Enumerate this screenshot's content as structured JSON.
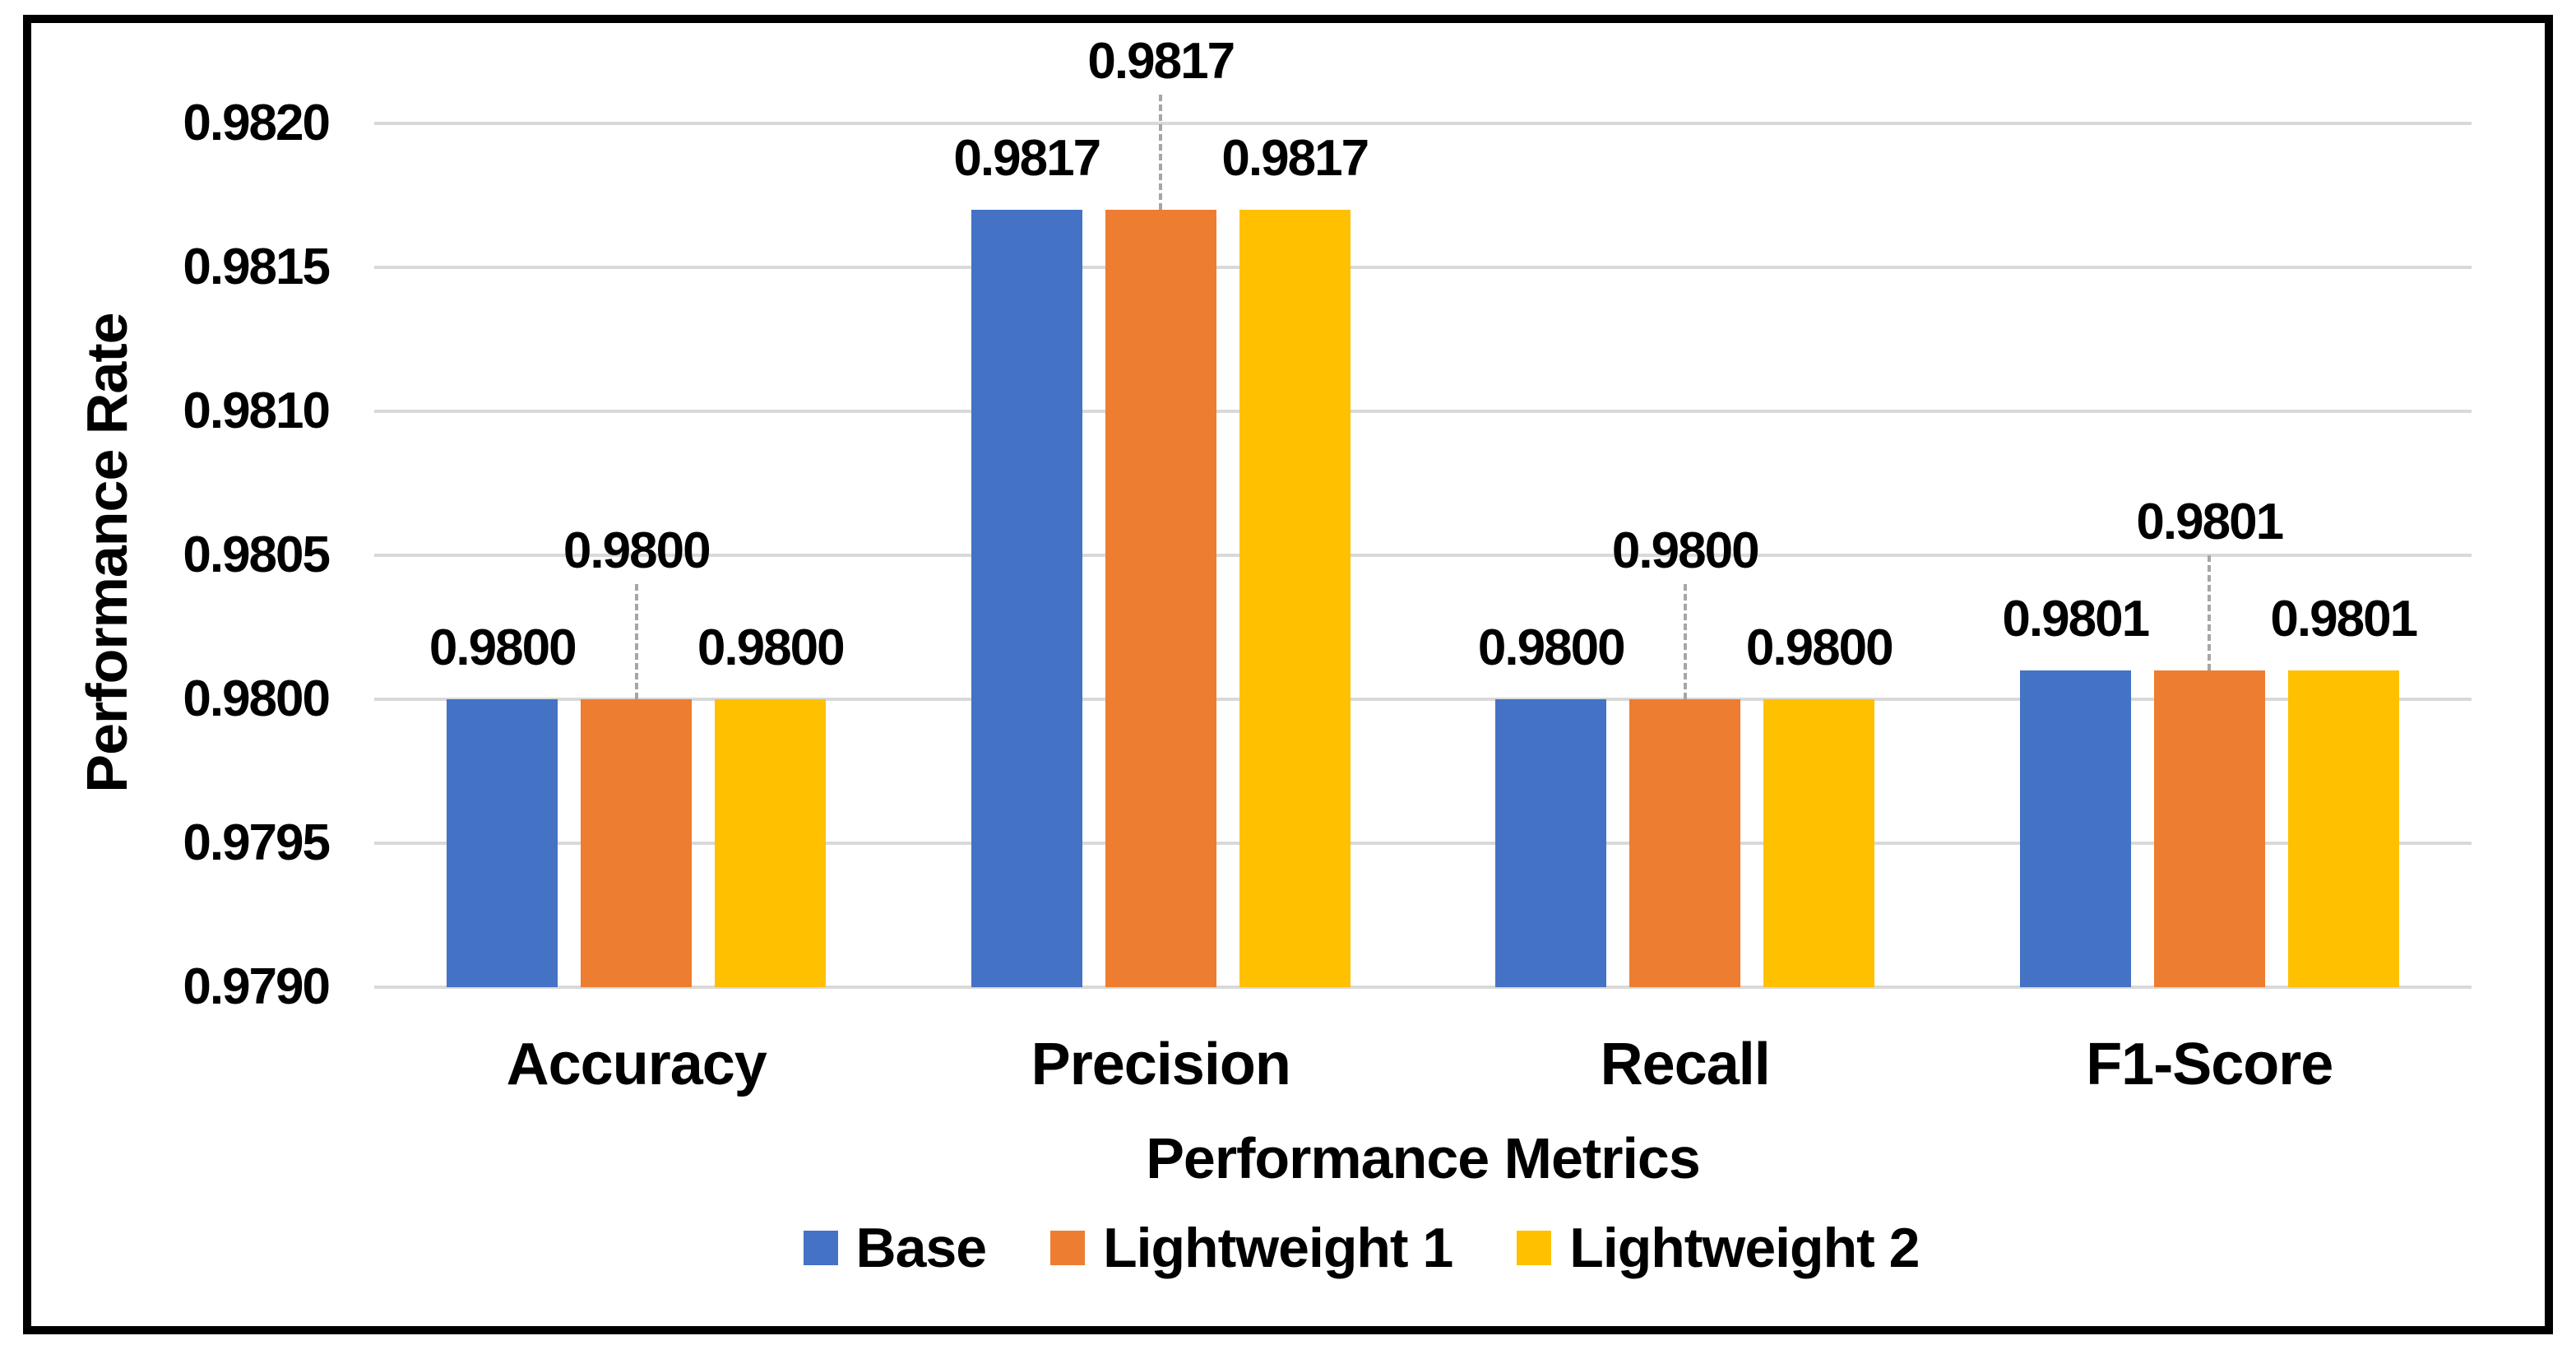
{
  "figure": {
    "background": "#FFFFFF",
    "border_color": "#000000"
  },
  "chart_data": {
    "type": "bar",
    "title": "",
    "categories": [
      "Accuracy",
      "Precision",
      "Recall",
      "F1-Score"
    ],
    "series": [
      {
        "name": "Base",
        "color": "#4472C4",
        "values": [
          0.98,
          0.9817,
          0.98,
          0.9801
        ],
        "value_labels": [
          "0.9800",
          "0.9817",
          "0.9800",
          "0.9801"
        ]
      },
      {
        "name": "Lightweight 1",
        "color": "#ED7D31",
        "values": [
          0.98,
          0.9817,
          0.98,
          0.9801
        ],
        "value_labels": [
          "0.9800",
          "0.9817",
          "0.9800",
          "0.9801"
        ]
      },
      {
        "name": "Lightweight 2",
        "color": "#FFC000",
        "values": [
          0.98,
          0.9817,
          0.98,
          0.9801
        ],
        "value_labels": [
          "0.9800",
          "0.9817",
          "0.9800",
          "0.9801"
        ]
      }
    ],
    "xlabel": "Performance Metrics",
    "ylabel": "Performance Rate",
    "ylim": [
      0.979,
      0.982
    ],
    "ytick_step": 0.0005,
    "ytick_labels": [
      "0.9820",
      "0.9815",
      "0.9810",
      "0.9805",
      "0.9800",
      "0.9795",
      "0.9790"
    ],
    "grid": true,
    "gridline_color": "#D9D9D9",
    "leader_line_color": "#A6A6A6",
    "legend_position": "bottom",
    "legend_entries": [
      "Base",
      "Lightweight 1",
      "Lightweight 2"
    ]
  }
}
